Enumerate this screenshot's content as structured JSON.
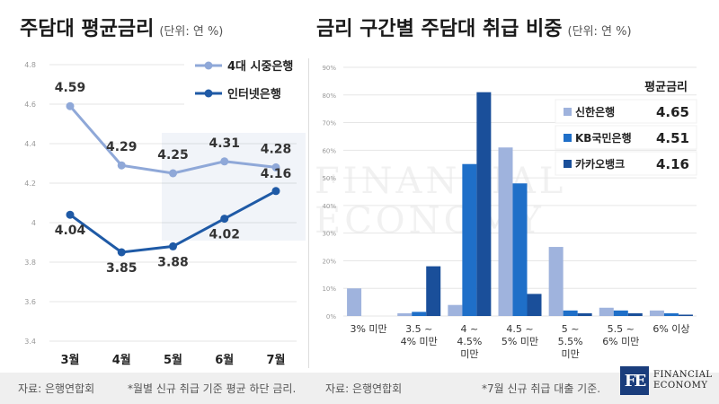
{
  "left_title": {
    "text": "주담대 평균금리",
    "unit": "(단위: 연 %)"
  },
  "right_title": {
    "text": "금리 구간별 주담대 취급 비중",
    "unit": "(단위: 연 %)"
  },
  "footer": {
    "left_source": "자료: 은행연합회",
    "left_note": "*월별 신규 취급 기준 평균 하단 금리.",
    "right_source": "자료: 은행연합회",
    "right_note": "*7월 신규 취급 대출 기준."
  },
  "logo": {
    "mark": "FE",
    "line1": "FINANCIAL",
    "line2": "ECONOMY"
  },
  "watermark": {
    "line1": "FINANCIAL",
    "line2": "ECONOMY"
  },
  "chart_data": [
    {
      "type": "line",
      "title": "주담대 평균금리",
      "categories": [
        "3월",
        "4월",
        "5월",
        "6월",
        "7월"
      ],
      "series": [
        {
          "name": "4대 시중은행",
          "values": [
            4.59,
            4.29,
            4.25,
            4.31,
            4.28
          ],
          "color": "#8fa8d8"
        },
        {
          "name": "인터넷은행",
          "values": [
            4.04,
            3.85,
            3.88,
            4.02,
            4.16
          ],
          "color": "#1f5aa6"
        }
      ],
      "ylim": [
        3.4,
        4.8
      ],
      "yticks": [
        "3.4",
        "3.6",
        "3.8",
        "4",
        "4.2",
        "4.4",
        "4.6",
        "4.8"
      ],
      "grid": true,
      "legend": "top-right"
    },
    {
      "type": "bar",
      "title": "금리 구간별 주담대 취급 비중",
      "categories": [
        [
          "3% 미만"
        ],
        [
          "3.5 ~",
          "4% 미만"
        ],
        [
          "4 ~",
          "4.5%",
          "미만"
        ],
        [
          "4.5 ~",
          "5% 미만"
        ],
        [
          "5 ~",
          "5.5%",
          "미만"
        ],
        [
          "5.5 ~",
          "6% 미만"
        ],
        [
          "6% 이상"
        ]
      ],
      "series": [
        {
          "name": "신한은행",
          "rate": "4.65",
          "values": [
            10,
            1,
            4,
            61,
            25,
            3,
            2
          ],
          "color": "#9fb3dd"
        },
        {
          "name": "KB국민은행",
          "rate": "4.51",
          "values": [
            0,
            1.5,
            55,
            48,
            2,
            2,
            1
          ],
          "color": "#1f6fc8"
        },
        {
          "name": "카카오뱅크",
          "rate": "4.16",
          "values": [
            0,
            18,
            81,
            8,
            1,
            1,
            0.5
          ],
          "color": "#1a4f9a"
        }
      ],
      "ylim": [
        0,
        90
      ],
      "yticks": [
        "0%",
        "10%",
        "20%",
        "30%",
        "40%",
        "50%",
        "60%",
        "70%",
        "80%",
        "90%"
      ],
      "grid": true,
      "legend": "top-right",
      "legend_title": "평균금리"
    }
  ]
}
